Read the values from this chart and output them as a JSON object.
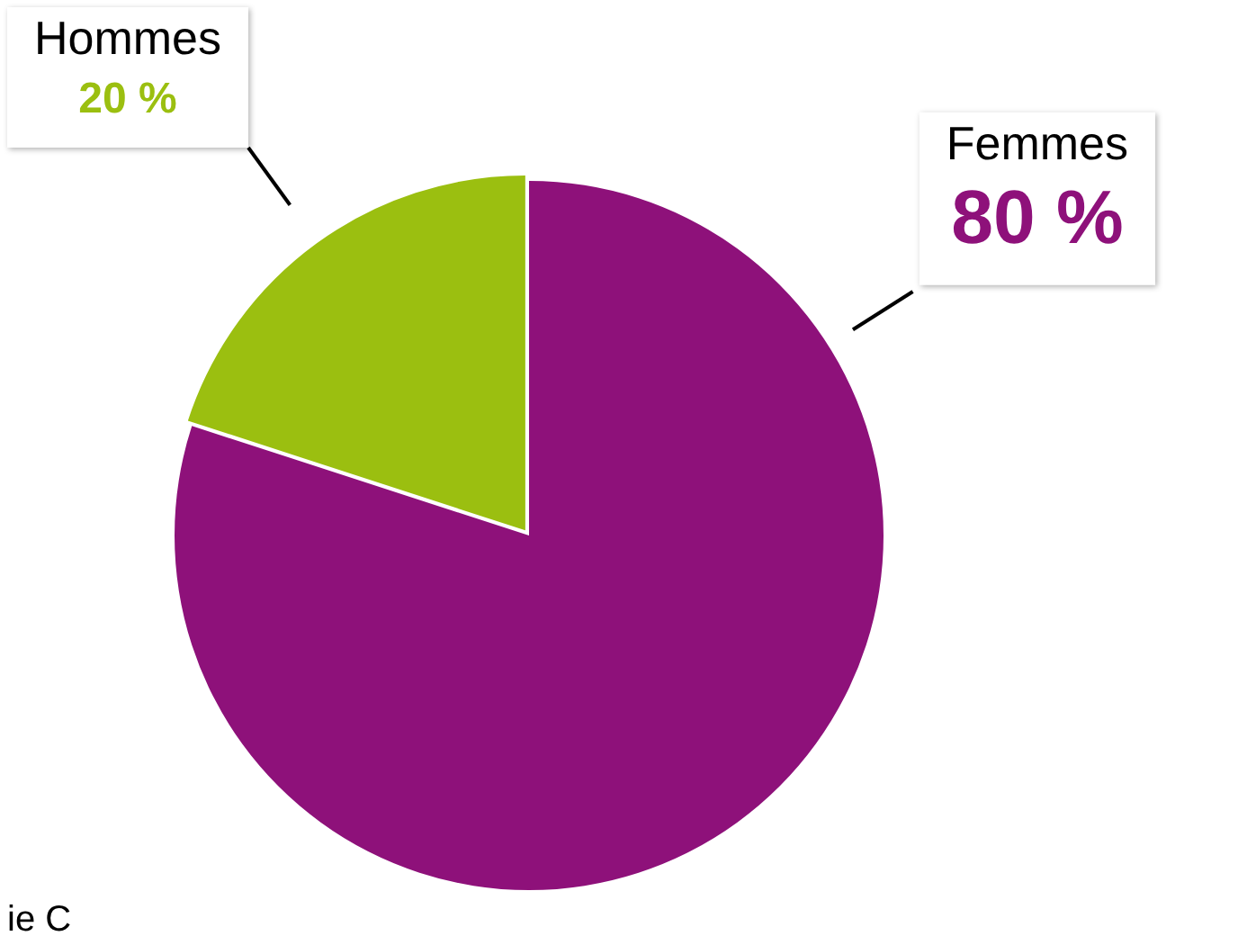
{
  "chart_data": {
    "type": "pie",
    "categories": [
      "Femmes",
      "Hommes"
    ],
    "values": [
      80,
      20
    ],
    "colors": [
      "#8e117a",
      "#9bbf10"
    ],
    "value_labels": [
      "80 %",
      "20 %"
    ],
    "legend": false,
    "annotations": [
      "ie C"
    ]
  }
}
